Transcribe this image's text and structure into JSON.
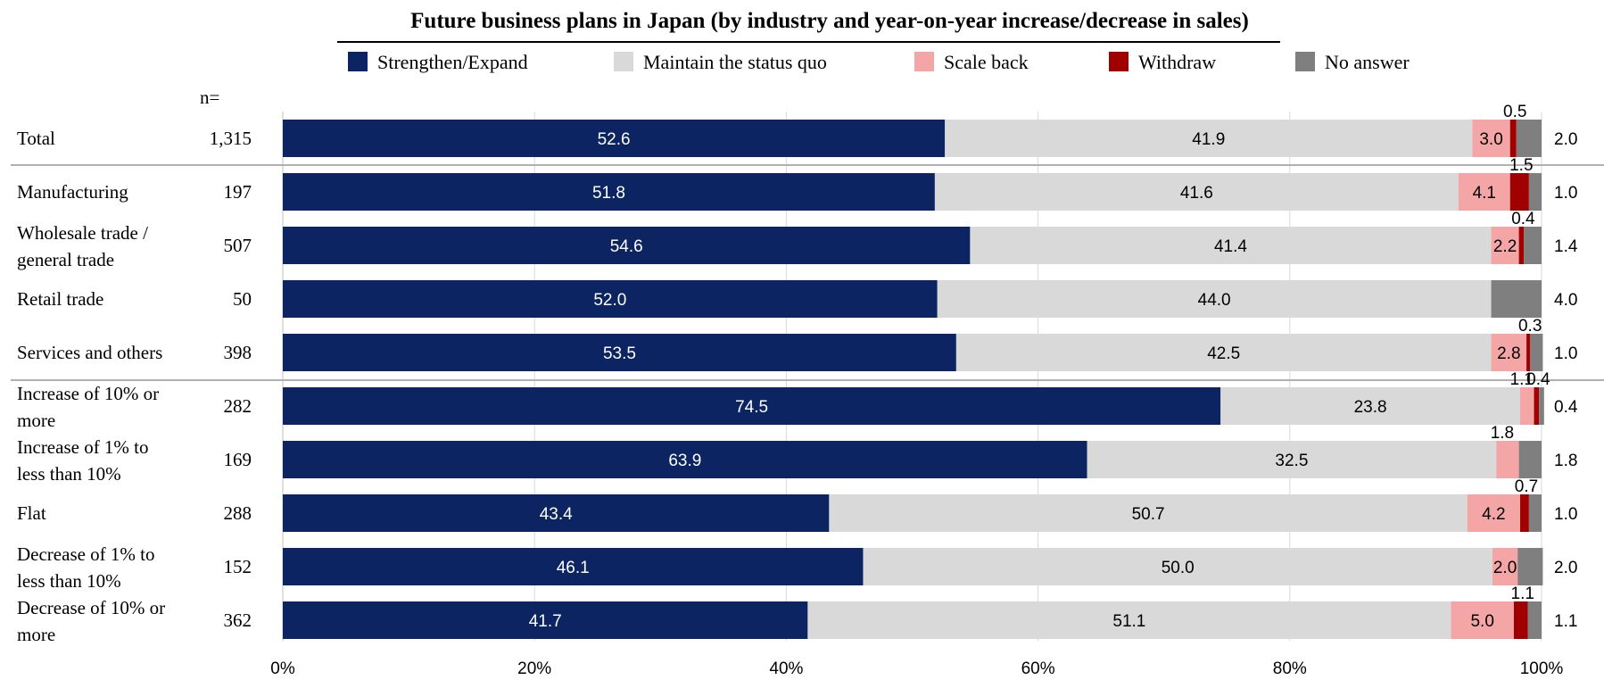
{
  "chart_data": {
    "type": "bar",
    "orientation": "horizontal-stacked-100",
    "title": "Future business plans in Japan (by industry and year-on-year increase/decrease in sales)",
    "n_header": "n=",
    "xlim": [
      0,
      100
    ],
    "x_ticks": [
      "0%",
      "20%",
      "40%",
      "60%",
      "80%",
      "100%"
    ],
    "grid": true,
    "legend_placement": "top",
    "series": [
      {
        "name": "Strengthen/Expand",
        "color": "#0c2461",
        "label_color": "#ffffff",
        "values": [
          52.6,
          51.8,
          54.6,
          52.0,
          53.5,
          74.5,
          63.9,
          43.4,
          46.1,
          41.7
        ]
      },
      {
        "name": "Maintain the status quo",
        "color": "#d9d9d9",
        "label_color": "#000000",
        "values": [
          41.9,
          41.6,
          41.4,
          44.0,
          42.5,
          23.8,
          32.5,
          50.7,
          50.0,
          51.1
        ]
      },
      {
        "name": "Scale back",
        "color": "#f4a6a6",
        "label_color": "#000000",
        "values": [
          3.0,
          4.1,
          2.2,
          0,
          2.8,
          1.1,
          1.8,
          4.2,
          2.0,
          5.0
        ]
      },
      {
        "name": "Withdraw",
        "color": "#a00000",
        "label_color": "#000000",
        "values": [
          0.5,
          1.5,
          0.4,
          0,
          0.3,
          0.4,
          0,
          0.7,
          0,
          1.1
        ]
      },
      {
        "name": "No answer",
        "color": "#7f7f7f",
        "label_color": "#000000",
        "values": [
          2.0,
          1.0,
          1.4,
          4.0,
          1.0,
          0.4,
          1.8,
          1.0,
          2.0,
          1.1
        ]
      }
    ],
    "categories": [
      {
        "label_lines": [
          "Total"
        ],
        "n": "1,315"
      },
      {
        "label_lines": [
          "Manufacturing"
        ],
        "n": "197"
      },
      {
        "label_lines": [
          "Wholesale trade /",
          "general trade"
        ],
        "n": "507"
      },
      {
        "label_lines": [
          "Retail trade"
        ],
        "n": "50"
      },
      {
        "label_lines": [
          "Services and others"
        ],
        "n": "398"
      },
      {
        "label_lines": [
          "Increase of 10% or",
          "more"
        ],
        "n": "282"
      },
      {
        "label_lines": [
          "Increase of 1% to",
          "less than 10%"
        ],
        "n": "169"
      },
      {
        "label_lines": [
          "Flat"
        ],
        "n": "288"
      },
      {
        "label_lines": [
          "Decrease of 1% to",
          "less than 10%"
        ],
        "n": "152"
      },
      {
        "label_lines": [
          "Decrease of 10% or",
          "more"
        ],
        "n": "362"
      }
    ],
    "bar_labels": [
      [
        "52.6",
        "41.9",
        "3.0",
        "0.5",
        "2.0"
      ],
      [
        "51.8",
        "41.6",
        "4.1",
        "1.5",
        "1.0"
      ],
      [
        "54.6",
        "41.4",
        "2.2",
        "0.4",
        "1.4"
      ],
      [
        "52.0",
        "44.0",
        "",
        "",
        "4.0"
      ],
      [
        "53.5",
        "42.5",
        "2.8",
        "0.3",
        "1.0"
      ],
      [
        "74.5",
        "23.8",
        "1.1",
        "0.4",
        "0.4"
      ],
      [
        "63.9",
        "32.5",
        "1.8",
        "",
        "1.8"
      ],
      [
        "43.4",
        "50.7",
        "4.2",
        "0.7",
        "1.0"
      ],
      [
        "46.1",
        "50.0",
        "2.0",
        "",
        "2.0"
      ],
      [
        "41.7",
        "51.1",
        "5.0",
        "1.1",
        "1.1"
      ]
    ]
  }
}
